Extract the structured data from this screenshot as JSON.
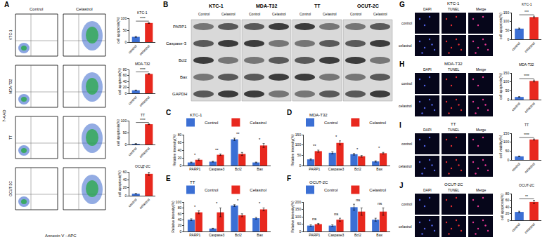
{
  "figure": {
    "panel_letters": [
      "A",
      "B",
      "C",
      "D",
      "E",
      "F",
      "G",
      "H",
      "I",
      "J"
    ],
    "flow": {
      "columns": [
        "Control",
        "Celastrol"
      ],
      "rows": [
        "KTC-1",
        "MDA-T32",
        "TT",
        "OCUT-2C"
      ],
      "y_label": "7-AAD",
      "x_label": "Annexin V - APC"
    },
    "blot": {
      "cell_lines": [
        "KTC-1",
        "MDA-T32",
        "TT",
        "OCUT-2C"
      ],
      "conditions": [
        "Control",
        "Celastrol"
      ],
      "proteins": [
        "PARP1",
        "Caspase-3",
        "Bcl2",
        "Bax",
        "GAPDH"
      ]
    },
    "tunel": {
      "titles": [
        "KTC-1",
        "MDA-T32",
        "TT",
        "OCUT-2C"
      ],
      "columns": [
        "DAPI",
        "TUNEL",
        "Merge"
      ],
      "rows": [
        "control",
        "celastrol"
      ]
    }
  },
  "chart_data": [
    {
      "type": "bar",
      "title": "KTC-1",
      "categories": [
        "control",
        "celastrol"
      ],
      "values": [
        22,
        80
      ],
      "errors": [
        2,
        2
      ],
      "colors": [
        "#3b6fd4",
        "#e8281e"
      ],
      "ylim": [
        0,
        100
      ],
      "yticks": [
        0,
        50,
        100
      ],
      "y_label": "cell apoptosis(%)",
      "significance": "****"
    },
    {
      "type": "bar",
      "title": "MDA-T32",
      "categories": [
        "control",
        "celastrol"
      ],
      "values": [
        10,
        65
      ],
      "errors": [
        1,
        2
      ],
      "colors": [
        "#3b6fd4",
        "#e8281e"
      ],
      "ylim": [
        0,
        80
      ],
      "yticks": [
        0,
        20,
        40,
        60,
        80
      ],
      "y_label": "cell apoptosis(%)",
      "significance": "****"
    },
    {
      "type": "bar",
      "title": "TT",
      "categories": [
        "control",
        "celastrol"
      ],
      "values": [
        3,
        85
      ],
      "errors": [
        0.5,
        1.5
      ],
      "colors": [
        "#3b6fd4",
        "#e8281e"
      ],
      "ylim": [
        0,
        100
      ],
      "yticks": [
        0,
        50,
        100
      ],
      "y_label": "cell apoptosis(%)",
      "significance": "****"
    },
    {
      "type": "bar",
      "title": "OCUT-2C",
      "categories": [
        "control",
        "celastrol"
      ],
      "values": [
        5,
        55
      ],
      "errors": [
        0.5,
        4
      ],
      "colors": [
        "#3b6fd4",
        "#e8281e"
      ],
      "ylim": [
        0,
        60
      ],
      "yticks": [
        0,
        20,
        40,
        60
      ],
      "y_label": "cell apoptosis(%)",
      "significance": "**"
    },
    {
      "type": "grouped_bar",
      "title": "KTC-1",
      "categories": [
        "PARP1",
        "Caspase3",
        "Bcl2",
        "Bax"
      ],
      "series": [
        {
          "name": "Control",
          "color": "#3b6fd4",
          "values": [
            8,
            10,
            68,
            8
          ],
          "errors": [
            1,
            1,
            3,
            1
          ]
        },
        {
          "name": "Celastrol",
          "color": "#e8281e",
          "values": [
            15,
            28,
            30,
            52
          ],
          "errors": [
            2,
            2,
            4,
            5
          ]
        }
      ],
      "ylim": [
        0,
        80
      ],
      "yticks": [
        0,
        20,
        40,
        60,
        80
      ],
      "y_label": "Relative intensity(%)",
      "legend": "top right",
      "annotations": [
        {
          "category": "PARP1",
          "text": "*"
        },
        {
          "category": "Caspase3",
          "text": "**"
        },
        {
          "category": "Bcl2",
          "text": "**"
        },
        {
          "category": "Bax",
          "text": "*"
        }
      ]
    },
    {
      "type": "grouped_bar",
      "title": "MDA-T32",
      "categories": [
        "PARP1",
        "Caspase3",
        "Bcl2",
        "Bax"
      ],
      "series": [
        {
          "name": "Control",
          "color": "#3b6fd4",
          "values": [
            30,
            62,
            55,
            20
          ],
          "errors": [
            3,
            5,
            4,
            3
          ]
        },
        {
          "name": "Celastrol",
          "color": "#e8281e",
          "values": [
            70,
            110,
            45,
            60
          ],
          "errors": [
            5,
            10,
            4,
            4
          ]
        }
      ],
      "ylim": [
        0,
        150
      ],
      "yticks": [
        0,
        50,
        100,
        150
      ],
      "y_label": "Relative intensity(%)",
      "legend": "top right",
      "annotations": [
        {
          "category": "PARP1",
          "text": "**"
        },
        {
          "category": "Caspase3",
          "text": "*"
        },
        {
          "category": "Bcl2",
          "text": "*"
        },
        {
          "category": "Bax",
          "text": "*"
        }
      ]
    },
    {
      "type": "grouped_bar",
      "title": "TT",
      "categories": [
        "PARP1",
        "Caspase3",
        "Bcl2",
        "Bax"
      ],
      "series": [
        {
          "name": "Control",
          "color": "#3b6fd4",
          "values": [
            40,
            10,
            88,
            45
          ],
          "errors": [
            3,
            1,
            3,
            3
          ]
        },
        {
          "name": "Celastrol",
          "color": "#e8281e",
          "values": [
            65,
            65,
            55,
            75
          ],
          "errors": [
            5,
            15,
            5,
            5
          ]
        }
      ],
      "ylim": [
        0,
        100
      ],
      "yticks": [
        0,
        20,
        40,
        60,
        80,
        100
      ],
      "y_label": "Relative intensity(%)",
      "legend": "top right",
      "annotations": [
        {
          "category": "PARP1",
          "text": "*"
        },
        {
          "category": "Caspase3",
          "text": "*"
        },
        {
          "category": "Bcl2",
          "text": "*"
        },
        {
          "category": "Bax",
          "text": "*"
        }
      ]
    },
    {
      "type": "grouped_bar",
      "title": "OCUT-2C",
      "categories": [
        "PARP1",
        "Caspase3",
        "Bcl2",
        "Bax"
      ],
      "series": [
        {
          "name": "Control",
          "color": "#3b6fd4",
          "values": [
            40,
            40,
            165,
            80
          ],
          "errors": [
            5,
            5,
            20,
            10
          ]
        },
        {
          "name": "Celastrol",
          "color": "#e8281e",
          "values": [
            50,
            80,
            135,
            135
          ],
          "errors": [
            5,
            10,
            25,
            25
          ]
        }
      ],
      "ylim": [
        0,
        200
      ],
      "yticks": [
        0,
        50,
        100,
        150,
        200
      ],
      "y_label": "Relative intensity(%)",
      "legend": "top right",
      "annotations": [
        {
          "category": "PARP1",
          "text": "ns"
        },
        {
          "category": "Caspase3",
          "text": "ns"
        },
        {
          "category": "Bcl2",
          "text": "ns"
        },
        {
          "category": "Bax",
          "text": "ns"
        }
      ]
    },
    {
      "type": "bar",
      "title": "KTC-1",
      "categories": [
        "control",
        "celastrol"
      ],
      "values": [
        60,
        125
      ],
      "errors": [
        3,
        5
      ],
      "colors": [
        "#3b6fd4",
        "#e8281e"
      ],
      "ylim": [
        0,
        150
      ],
      "yticks": [
        0,
        50,
        100,
        150
      ],
      "y_label": "cell apoptosis(%)",
      "significance": "***"
    },
    {
      "type": "bar",
      "title": "MDA-T32",
      "categories": [
        "control",
        "celastrol"
      ],
      "values": [
        15,
        105
      ],
      "errors": [
        2,
        5
      ],
      "colors": [
        "#3b6fd4",
        "#e8281e"
      ],
      "ylim": [
        0,
        150
      ],
      "yticks": [
        0,
        50,
        100,
        150
      ],
      "y_label": "cell apoptosis(%)",
      "significance": "****"
    },
    {
      "type": "bar",
      "title": "TT",
      "categories": [
        "control",
        "celastrol"
      ],
      "values": [
        20,
        115
      ],
      "errors": [
        2,
        3
      ],
      "colors": [
        "#3b6fd4",
        "#e8281e"
      ],
      "ylim": [
        0,
        150
      ],
      "yticks": [
        0,
        50,
        100,
        150
      ],
      "y_label": "cell viability(%)",
      "significance": "****"
    },
    {
      "type": "bar",
      "title": "OCUT-2C",
      "categories": [
        "control",
        "celastrol"
      ],
      "values": [
        25,
        55
      ],
      "errors": [
        2,
        5
      ],
      "colors": [
        "#3b6fd4",
        "#e8281e"
      ],
      "ylim": [
        0,
        80
      ],
      "yticks": [
        0,
        20,
        40,
        60,
        80
      ],
      "y_label": "cell apoptosis(%)",
      "significance": "**"
    }
  ]
}
